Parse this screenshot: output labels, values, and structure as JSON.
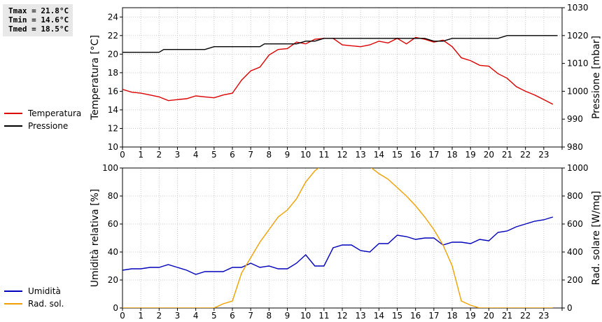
{
  "stats": {
    "tmax": "Tmax = 21.8°C",
    "tmin": "Tmin = 14.6°C",
    "tmed": "Tmed = 18.5°C"
  },
  "legend_top": [
    {
      "label": "Temperatura",
      "color": "#dd0000"
    },
    {
      "label": "Pressione",
      "color": "#000000"
    }
  ],
  "legend_bottom": [
    {
      "label": "Umidità",
      "color": "#0000bb"
    },
    {
      "label": "Rad. sol.",
      "color": "#f0a000"
    }
  ],
  "chart_data": [
    {
      "type": "line",
      "xlabel": "",
      "xlim": [
        0,
        24
      ],
      "xticks": [
        "0",
        "1",
        "2",
        "3",
        "4",
        "5",
        "6",
        "7",
        "8",
        "9",
        "10",
        "11",
        "12",
        "13",
        "14",
        "15",
        "16",
        "17",
        "18",
        "19",
        "20",
        "21",
        "22",
        "23"
      ],
      "grid": true,
      "y_left": {
        "label": "Temperatura [°C]",
        "lim": [
          10,
          25
        ],
        "ticks": [
          10,
          12,
          14,
          16,
          18,
          20,
          22,
          24
        ]
      },
      "y_right": {
        "label": "Pressione [mbar]",
        "lim": [
          980,
          1030
        ],
        "ticks": [
          980,
          990,
          1000,
          1010,
          1020,
          1030
        ]
      },
      "series": [
        {
          "name": "Temperatura",
          "axis": "left",
          "color": "#dd0000",
          "x": [
            0,
            0.5,
            1,
            1.5,
            2,
            2.5,
            3,
            3.5,
            4,
            4.5,
            5,
            5.5,
            6,
            6.5,
            7,
            7.5,
            8,
            8.5,
            9,
            9.5,
            10,
            10.5,
            11,
            11.5,
            12,
            12.5,
            13,
            13.5,
            14,
            14.5,
            15,
            15.5,
            16,
            16.5,
            17,
            17.5,
            18,
            18.5,
            19,
            19.5,
            20,
            20.5,
            21,
            21.5,
            22,
            22.5,
            23,
            23.5
          ],
          "y": [
            16.2,
            15.9,
            15.8,
            15.6,
            15.4,
            15.0,
            15.1,
            15.2,
            15.5,
            15.4,
            15.3,
            15.6,
            15.8,
            17.2,
            18.2,
            18.6,
            19.9,
            20.5,
            20.6,
            21.3,
            21.1,
            21.6,
            21.7,
            21.7,
            21.0,
            20.9,
            20.8,
            21.0,
            21.4,
            21.2,
            21.7,
            21.1,
            21.8,
            21.6,
            21.3,
            21.5,
            20.8,
            19.6,
            19.3,
            18.8,
            18.7,
            17.9,
            17.4,
            16.5,
            16.0,
            15.6,
            15.1,
            14.6
          ]
        },
        {
          "name": "Pressione",
          "axis": "right",
          "color": "#000000",
          "x": [
            0,
            2,
            2.25,
            4.5,
            5,
            7.5,
            7.75,
            9.5,
            10,
            10.5,
            11,
            16.5,
            17,
            17.5,
            18,
            20.5,
            21,
            23.75
          ],
          "y": [
            1014,
            1014,
            1015,
            1015,
            1016,
            1016,
            1017,
            1017,
            1018,
            1018,
            1019,
            1019,
            1018,
            1018,
            1019,
            1019,
            1020,
            1020
          ]
        }
      ]
    },
    {
      "type": "line",
      "xlabel": "",
      "xlim": [
        0,
        24
      ],
      "xticks": [
        "0",
        "1",
        "2",
        "3",
        "4",
        "5",
        "6",
        "7",
        "8",
        "9",
        "10",
        "11",
        "12",
        "13",
        "14",
        "15",
        "16",
        "17",
        "18",
        "19",
        "20",
        "21",
        "22",
        "23"
      ],
      "grid": true,
      "y_left": {
        "label": "Umidità relativa [%]",
        "lim": [
          0,
          100
        ],
        "ticks": [
          0,
          20,
          40,
          60,
          80,
          100
        ]
      },
      "y_right": {
        "label": "Rad. solare [W/mq]",
        "lim": [
          0,
          1000
        ],
        "ticks": [
          0,
          200,
          400,
          600,
          800,
          1000
        ]
      },
      "series": [
        {
          "name": "Umidità",
          "axis": "left",
          "color": "#0000bb",
          "x": [
            0,
            0.5,
            1,
            1.5,
            2,
            2.5,
            3,
            3.5,
            4,
            4.5,
            5,
            5.5,
            6,
            6.5,
            7,
            7.5,
            8,
            8.5,
            9,
            9.5,
            10,
            10.5,
            11,
            11.5,
            12,
            12.5,
            13,
            13.5,
            14,
            14.5,
            15,
            15.5,
            16,
            16.5,
            17,
            17.5,
            18,
            18.5,
            19,
            19.5,
            20,
            20.5,
            21,
            21.5,
            22,
            22.5,
            23,
            23.5
          ],
          "y": [
            27,
            28,
            28,
            29,
            29,
            31,
            29,
            27,
            24,
            26,
            26,
            26,
            29,
            29,
            32,
            29,
            30,
            28,
            28,
            32,
            38,
            30,
            30,
            43,
            45,
            45,
            41,
            40,
            46,
            46,
            52,
            51,
            49,
            50,
            50,
            45,
            47,
            47,
            46,
            49,
            48,
            54,
            55,
            58,
            60,
            62,
            63,
            65
          ]
        },
        {
          "name": "Rad. sol.",
          "axis": "right",
          "color": "#f0a000",
          "x": [
            0,
            1,
            2,
            3,
            4,
            5,
            5.5,
            6,
            6.5,
            7,
            7.5,
            8,
            8.5,
            9,
            9.5,
            10,
            10.5,
            11,
            11.5,
            12,
            12.5,
            13,
            13.5,
            14,
            14.5,
            15,
            15.5,
            16,
            16.5,
            17,
            17.5,
            18,
            18.5,
            19,
            19.5,
            20,
            21,
            22,
            23,
            23.5
          ],
          "y": [
            0,
            0,
            0,
            0,
            0,
            0,
            30,
            50,
            250,
            360,
            470,
            560,
            650,
            700,
            780,
            900,
            980,
            1030,
            1060,
            1070,
            1060,
            1040,
            1010,
            960,
            920,
            860,
            800,
            730,
            650,
            560,
            450,
            300,
            50,
            20,
            0,
            0,
            0,
            0,
            0,
            0
          ]
        }
      ]
    }
  ]
}
